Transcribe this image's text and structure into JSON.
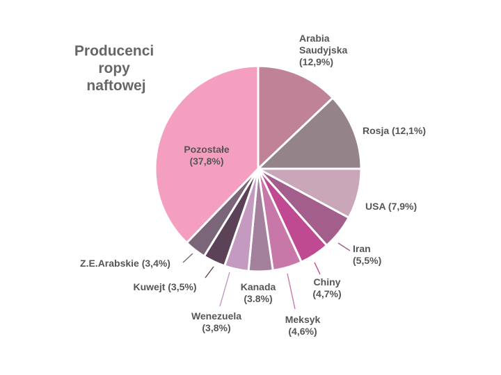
{
  "chart_data": {
    "type": "pie",
    "title": [
      "Producenci",
      "ropy",
      "naftowej"
    ],
    "slices": [
      {
        "name": "Arabia Saudyjska",
        "label": [
          "Arabia",
          "Saudyjska",
          "(12,9%)"
        ],
        "value": 12.9,
        "color": "#bf8296"
      },
      {
        "name": "Rosja",
        "label": [
          "Rosja (12,1%)"
        ],
        "value": 12.1,
        "color": "#948389"
      },
      {
        "name": "USA",
        "label": [
          "USA (7,9%)"
        ],
        "value": 7.9,
        "color": "#c9a6b8"
      },
      {
        "name": "Iran",
        "label": [
          "Iran",
          "(5,5%)"
        ],
        "value": 5.5,
        "color": "#a35e8c"
      },
      {
        "name": "Chiny",
        "label": [
          "Chiny",
          "(4,7%)"
        ],
        "value": 4.7,
        "color": "#bf4a92"
      },
      {
        "name": "Meksyk",
        "label": [
          "Meksyk",
          "(4,6%)"
        ],
        "value": 4.6,
        "color": "#c778a8"
      },
      {
        "name": "Kanada",
        "label": [
          "Kanada",
          "(3.8%)"
        ],
        "value": 3.8,
        "color": "#a3809c"
      },
      {
        "name": "Wenezuela",
        "label": [
          "Wenezuela",
          "(3,8%)"
        ],
        "value": 3.8,
        "color": "#c49ac0"
      },
      {
        "name": "Kuwejt",
        "label": [
          "Kuwejt (3,5%)"
        ],
        "value": 3.5,
        "color": "#5c4257"
      },
      {
        "name": "Z.E.Arabskie",
        "label": [
          "Z.E.Arabskie (3,4%)"
        ],
        "value": 3.4,
        "color": "#7a6678"
      },
      {
        "name": "Pozostałe",
        "label": [
          "Pozostałe",
          "(37,8%)"
        ],
        "value": 37.8,
        "color": "#f49fc0"
      }
    ]
  }
}
